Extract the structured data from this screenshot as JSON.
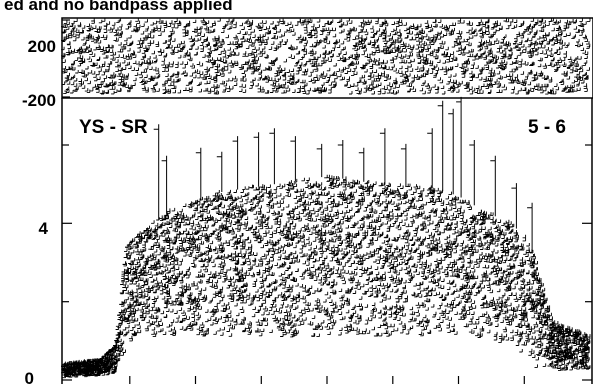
{
  "chart_data": [
    {
      "type": "scatter",
      "panel": "phase",
      "title": "ed and no bandpass applied",
      "y_ticks": [
        "200",
        "-200"
      ],
      "ylim": [
        -200,
        200
      ],
      "grid": false,
      "marker": "plus",
      "series": [
        {
          "color": "#000000",
          "y_band": [
            -190,
            195
          ]
        }
      ]
    },
    {
      "type": "scatter",
      "panel": "amplitude",
      "baseline_label": "YS - SR",
      "channel_label": "5 - 6",
      "y_ticks": [
        "4",
        "0"
      ],
      "y_tick_values": [
        4,
        0
      ],
      "ylim": [
        0,
        7.2
      ],
      "grid": false,
      "marker": "plus",
      "series": [
        {
          "color": "#000000",
          "envelope_x": [
            0,
            0.07,
            0.1,
            0.12,
            0.15,
            0.2,
            0.3,
            0.4,
            0.5,
            0.6,
            0.7,
            0.75,
            0.8,
            0.85,
            0.88,
            0.9,
            0.93,
            1.0
          ],
          "envelope_lower": [
            0.05,
            0.1,
            0.15,
            0.8,
            1.0,
            1.1,
            1.1,
            1.1,
            1.1,
            1.1,
            1.1,
            1.1,
            1.0,
            0.9,
            0.6,
            0.3,
            0.25,
            0.2
          ],
          "envelope_upper": [
            0.4,
            0.5,
            0.9,
            3.4,
            3.8,
            4.3,
            4.8,
            5.0,
            5.2,
            5.0,
            4.9,
            4.7,
            4.3,
            4.0,
            3.6,
            3.0,
            1.5,
            1.1
          ],
          "spikes": [
            {
              "x": 0.18,
              "y": 6.4
            },
            {
              "x": 0.195,
              "y": 5.6
            },
            {
              "x": 0.26,
              "y": 5.8
            },
            {
              "x": 0.3,
              "y": 5.7
            },
            {
              "x": 0.33,
              "y": 6.1
            },
            {
              "x": 0.37,
              "y": 6.2
            },
            {
              "x": 0.4,
              "y": 6.3
            },
            {
              "x": 0.44,
              "y": 6.1
            },
            {
              "x": 0.49,
              "y": 5.9
            },
            {
              "x": 0.53,
              "y": 6.0
            },
            {
              "x": 0.57,
              "y": 5.8
            },
            {
              "x": 0.61,
              "y": 6.3
            },
            {
              "x": 0.65,
              "y": 5.9
            },
            {
              "x": 0.7,
              "y": 6.3
            },
            {
              "x": 0.72,
              "y": 7.0
            },
            {
              "x": 0.74,
              "y": 6.8
            },
            {
              "x": 0.755,
              "y": 7.1
            },
            {
              "x": 0.78,
              "y": 6.0
            },
            {
              "x": 0.82,
              "y": 5.6
            },
            {
              "x": 0.86,
              "y": 4.9
            },
            {
              "x": 0.89,
              "y": 4.4
            }
          ]
        }
      ]
    }
  ]
}
